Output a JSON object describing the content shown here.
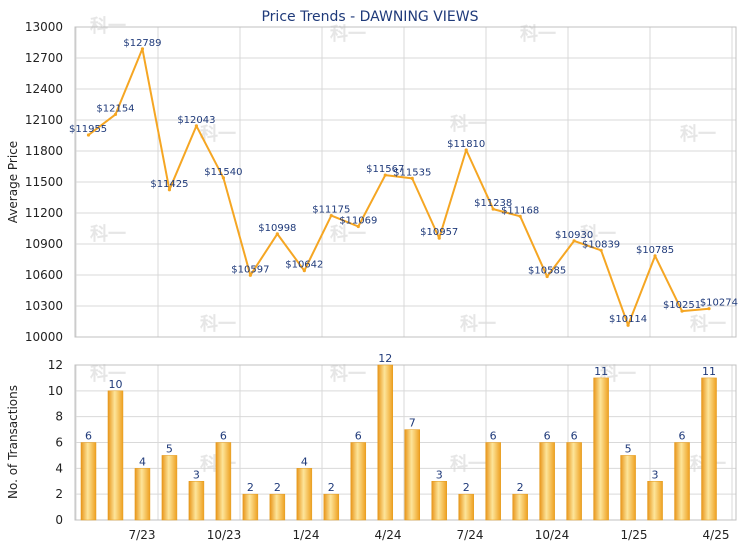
{
  "chart_data": [
    {
      "type": "line",
      "title": "Price Trends - DAWNING VIEWS",
      "ylabel": "Average Price",
      "ylim": [
        10000,
        13000
      ],
      "yticks": [
        10000,
        10300,
        10600,
        10900,
        11200,
        11500,
        11800,
        12100,
        12400,
        12700,
        13000
      ],
      "grid": true,
      "color": "#f5a623",
      "point_labels": [
        "$11955",
        "$12154",
        "$12789",
        "$11425",
        "$12043",
        "$11540",
        "$10597",
        "$10998",
        "$10642",
        "$11175",
        "$11069",
        "$11567",
        "$11535",
        "$10957",
        "$11810",
        "$11238",
        "$11168",
        "$10585",
        "$10930",
        "$10839",
        "$10114",
        "$10785",
        "$10251",
        "$10274"
      ],
      "values": [
        11955,
        12154,
        12789,
        11425,
        12043,
        11540,
        10597,
        10998,
        10642,
        11175,
        11069,
        11567,
        11535,
        10957,
        11810,
        11238,
        11168,
        10585,
        10930,
        10839,
        10114,
        10785,
        10251,
        10274
      ]
    },
    {
      "type": "bar",
      "ylabel": "No. of Transactions",
      "ylim": [
        0,
        12
      ],
      "yticks": [
        0,
        2,
        4,
        6,
        8,
        10,
        12
      ],
      "grid": true,
      "color": "#f5a623",
      "xticks": [
        "7/23",
        "10/23",
        "1/24",
        "4/24",
        "7/24",
        "10/24",
        "1/25",
        "4/25"
      ],
      "values": [
        6,
        10,
        4,
        5,
        3,
        6,
        2,
        2,
        4,
        2,
        6,
        12,
        7,
        3,
        2,
        6,
        2,
        6,
        6,
        11,
        5,
        3,
        6,
        11
      ]
    }
  ],
  "watermark": "科一"
}
